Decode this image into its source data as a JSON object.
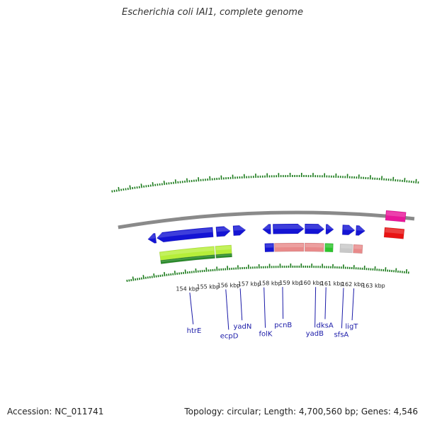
{
  "header": {
    "title": "Escherichia coli IAI1, complete genome"
  },
  "footer": {
    "accession": "Accession: NC_011741",
    "topology": "Topology: circular; Length: 4,700,560 bp; Genes: 4,546"
  },
  "colors": {
    "backbone": "#8a8a8a",
    "gc_ticks": "#1a7a1a",
    "cds_forward": "#1414d4",
    "rna_green": "#2cc42c",
    "light_green": "#b6ee3a",
    "dark_green": "#2a8a2a",
    "salmon": "#e88a8a",
    "grey": "#c8c8c8",
    "magenta": "#e8189a",
    "red": "#e81414",
    "gene_label": "#1a1aa8"
  },
  "scale": {
    "unit": "kbp",
    "ticks": [
      {
        "pos": 154,
        "label": "154 kbp"
      },
      {
        "pos": 155,
        "label": "155 kbp"
      },
      {
        "pos": 156,
        "label": "156 kbp"
      },
      {
        "pos": 157,
        "label": "157 kbp"
      },
      {
        "pos": 158,
        "label": "158 kbp"
      },
      {
        "pos": 159,
        "label": "159 kbp"
      },
      {
        "pos": 160,
        "label": "160 kbp"
      },
      {
        "pos": 161,
        "label": "161 kbp"
      },
      {
        "pos": 162,
        "label": "162 kbp"
      },
      {
        "pos": 163,
        "label": "163 kbp"
      }
    ]
  },
  "features": [
    {
      "lane": "top",
      "start": 152.45,
      "end": 152.82,
      "dir": "rev",
      "color": "cds_forward"
    },
    {
      "lane": "top",
      "start": 152.86,
      "end": 155.45,
      "dir": "rev",
      "color": "cds_forward"
    },
    {
      "lane": "top",
      "start": 155.6,
      "end": 156.25,
      "dir": "fwd",
      "color": "cds_forward"
    },
    {
      "lane": "top",
      "start": 156.38,
      "end": 156.95,
      "dir": "fwd",
      "color": "cds_forward"
    },
    {
      "lane": "top",
      "start": 157.72,
      "end": 158.1,
      "dir": "rev",
      "color": "cds_forward"
    },
    {
      "lane": "top",
      "start": 158.2,
      "end": 159.62,
      "dir": "fwd",
      "color": "cds_forward"
    },
    {
      "lane": "top",
      "start": 159.66,
      "end": 160.55,
      "dir": "fwd",
      "color": "cds_forward"
    },
    {
      "lane": "top",
      "start": 160.62,
      "end": 160.98,
      "dir": "fwd",
      "color": "cds_forward"
    },
    {
      "lane": "top",
      "start": 161.38,
      "end": 161.95,
      "dir": "fwd",
      "color": "cds_forward"
    },
    {
      "lane": "top",
      "start": 162.0,
      "end": 162.42,
      "dir": "fwd",
      "color": "cds_forward"
    },
    {
      "lane": "mid",
      "start": 152.9,
      "end": 155.45,
      "dir": "none",
      "color": "light_green"
    },
    {
      "lane": "mid",
      "start": 155.5,
      "end": 156.25,
      "dir": "none",
      "color": "light_green"
    },
    {
      "lane": "mid2",
      "start": 152.9,
      "end": 155.45,
      "dir": "none",
      "color": "dark_green"
    },
    {
      "lane": "mid2",
      "start": 155.5,
      "end": 156.25,
      "dir": "none",
      "color": "dark_green"
    },
    {
      "lane": "mid",
      "start": 157.8,
      "end": 158.22,
      "dir": "none",
      "color": "cds_forward"
    },
    {
      "lane": "mid",
      "start": 158.25,
      "end": 159.62,
      "dir": "none",
      "color": "salmon"
    },
    {
      "lane": "mid",
      "start": 159.66,
      "end": 160.55,
      "dir": "none",
      "color": "salmon"
    },
    {
      "lane": "mid",
      "start": 160.6,
      "end": 160.98,
      "dir": "none",
      "color": "rna_green"
    },
    {
      "lane": "mid",
      "start": 161.3,
      "end": 161.88,
      "dir": "none",
      "color": "grey"
    },
    {
      "lane": "mid",
      "start": 161.92,
      "end": 162.35,
      "dir": "none",
      "color": "salmon"
    },
    {
      "lane": "edge_top",
      "start": 163.3,
      "end": 164.2,
      "dir": "none",
      "color": "magenta"
    },
    {
      "lane": "edge_bot",
      "start": 163.3,
      "end": 164.2,
      "dir": "none",
      "color": "red"
    }
  ],
  "genes": [
    {
      "name": "htrE",
      "pos": 154.1
    },
    {
      "name": "ecpD",
      "pos": 155.85
    },
    {
      "name": "yadN",
      "pos": 156.55
    },
    {
      "name": "folK",
      "pos": 157.7
    },
    {
      "name": "pcnB",
      "pos": 158.6
    },
    {
      "name": "yadB",
      "pos": 160.2
    },
    {
      "name": "dksA",
      "pos": 160.7
    },
    {
      "name": "sfsA",
      "pos": 161.55
    },
    {
      "name": "ligT",
      "pos": 162.05
    }
  ]
}
